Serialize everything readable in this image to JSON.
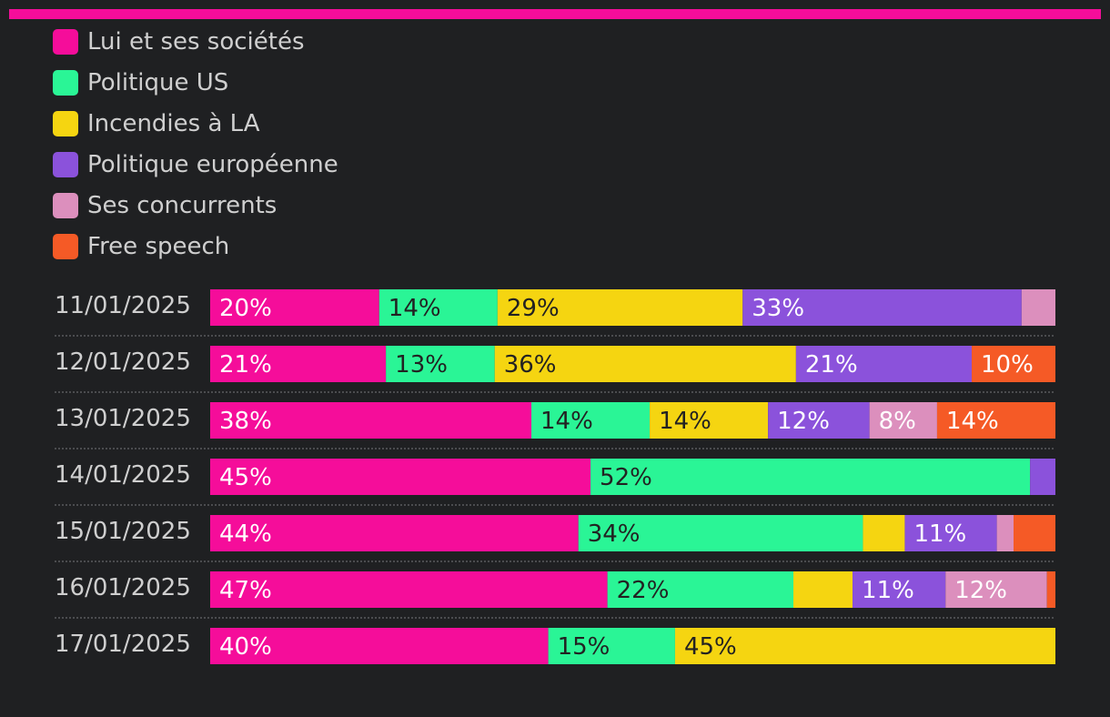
{
  "accent": "#f50d9a",
  "chart_data": {
    "type": "bar",
    "orientation": "horizontal",
    "stacked": true,
    "normalized": true,
    "categories": [
      "11/01/2025",
      "12/01/2025",
      "13/01/2025",
      "14/01/2025",
      "15/01/2025",
      "16/01/2025",
      "17/01/2025"
    ],
    "series": [
      {
        "name": "Lui et ses sociétés",
        "color": "#f50d9a",
        "label_color": "#ffffff",
        "values": [
          20,
          21,
          38,
          45,
          44,
          47,
          40
        ],
        "labels": [
          "20%",
          "21%",
          "38%",
          "45%",
          "44%",
          "47%",
          "40%"
        ]
      },
      {
        "name": "Politique US",
        "color": "#2af596",
        "label_color": "#222222",
        "values": [
          14,
          13,
          14,
          52,
          34,
          22,
          15
        ],
        "labels": [
          "14%",
          "13%",
          "14%",
          "52%",
          "34%",
          "22%",
          "15%"
        ]
      },
      {
        "name": "Incendies à LA",
        "color": "#f5d511",
        "label_color": "#222222",
        "values": [
          29,
          36,
          14,
          0,
          5,
          7,
          45
        ],
        "labels": [
          "29%",
          "36%",
          "14%",
          "",
          "",
          "",
          "45%"
        ]
      },
      {
        "name": "Politique européenne",
        "color": "#8b52db",
        "label_color": "#ffffff",
        "values": [
          33,
          21,
          12,
          3,
          11,
          11,
          0
        ],
        "labels": [
          "33%",
          "21%",
          "12%",
          "",
          "11%",
          "11%",
          ""
        ]
      },
      {
        "name": "Ses concurrents",
        "color": "#dc8fbd",
        "label_color": "#ffffff",
        "values": [
          4,
          0,
          8,
          0,
          2,
          12,
          0
        ],
        "labels": [
          "",
          "",
          "8%",
          "",
          "",
          "12%",
          ""
        ]
      },
      {
        "name": "Free speech",
        "color": "#f55a26",
        "label_color": "#ffffff",
        "values": [
          0,
          10,
          14,
          0,
          5,
          1,
          0
        ],
        "labels": [
          "",
          "10%",
          "14%",
          "",
          "",
          "",
          ""
        ]
      }
    ],
    "legend_position": "top-left",
    "grid": false
  }
}
